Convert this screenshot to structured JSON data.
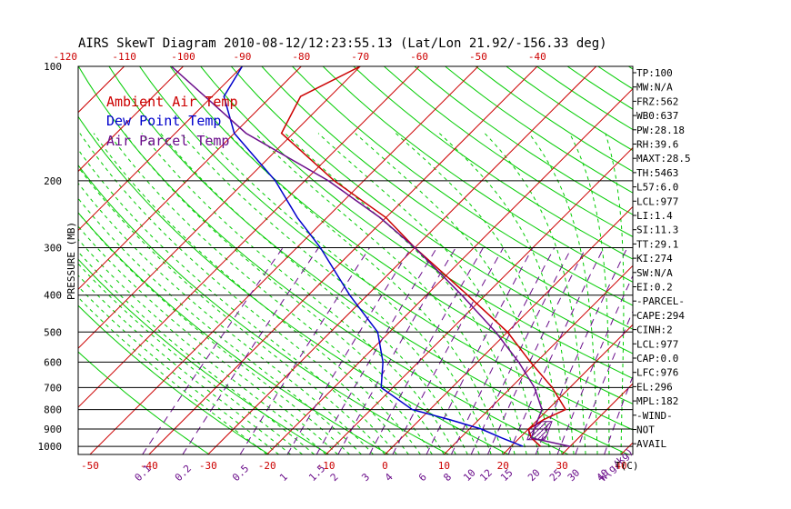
{
  "chart_data": {
    "type": "line",
    "title": "AIRS SkewT Diagram 2010-08-12/12:23:55.13 (Lat/Lon 21.92/-156.33 deg)",
    "ylabel": "PRESSURE (MB)",
    "xlabel": "T(C)",
    "mixing_ratio_unit": "W(g/kg)",
    "legend": [
      "Ambient Air Temp",
      "Dew Point Temp",
      "Air Parcel Temp"
    ],
    "legend_position": "top-left",
    "grid": true,
    "y_scale": "log",
    "ylim": [
      1050,
      100
    ],
    "xlim_bottom": [
      -52,
      42
    ],
    "y_ticks": [
      "100",
      "200",
      "300",
      "400",
      "500",
      "600",
      "700",
      "800",
      "900",
      "1000"
    ],
    "x_ticks_bottom": [
      "-50",
      "-40",
      "-30",
      "-20",
      "-10",
      "0",
      "10",
      "20",
      "30",
      "40"
    ],
    "x_ticks_top": [
      "-120",
      "-110",
      "-100",
      "-90",
      "-80",
      "-70",
      "-60",
      "-50",
      "-40"
    ],
    "mixing_ratio_labels": [
      "0.1",
      "0.2",
      "0.5",
      "1",
      "1.5",
      "2",
      "3",
      "4",
      "6",
      "8",
      "10",
      "12",
      "15",
      "20",
      "25",
      "30",
      "40"
    ],
    "series": [
      {
        "name": "Ambient Air Temp",
        "color": "#cc0000",
        "points": [
          [
            1000,
            25
          ],
          [
            950,
            22
          ],
          [
            900,
            20
          ],
          [
            850,
            21
          ],
          [
            800,
            23
          ],
          [
            700,
            17
          ],
          [
            600,
            9
          ],
          [
            500,
            0
          ],
          [
            400,
            -13
          ],
          [
            300,
            -30
          ],
          [
            250,
            -40
          ],
          [
            200,
            -55
          ],
          [
            150,
            -72
          ],
          [
            120,
            -75
          ],
          [
            100,
            -70
          ]
        ]
      },
      {
        "name": "Dew Point Temp",
        "color": "#0000cc",
        "points": [
          [
            1000,
            22
          ],
          [
            950,
            17
          ],
          [
            900,
            12
          ],
          [
            850,
            5
          ],
          [
            800,
            -3
          ],
          [
            700,
            -12
          ],
          [
            600,
            -16
          ],
          [
            500,
            -22
          ],
          [
            400,
            -33
          ],
          [
            300,
            -46
          ],
          [
            250,
            -55
          ],
          [
            200,
            -65
          ],
          [
            150,
            -80
          ],
          [
            120,
            -88
          ],
          [
            100,
            -90
          ]
        ]
      },
      {
        "name": "Air Parcel Temp",
        "color": "#6a0d8a",
        "points": [
          [
            1000,
            30
          ],
          [
            950,
            22
          ],
          [
            900,
            21
          ],
          [
            850,
            20
          ],
          [
            800,
            19
          ],
          [
            700,
            14
          ],
          [
            600,
            7
          ],
          [
            500,
            -2
          ],
          [
            400,
            -14
          ],
          [
            300,
            -30
          ],
          [
            250,
            -41
          ],
          [
            200,
            -56
          ],
          [
            150,
            -78
          ],
          [
            100,
            -102
          ]
        ]
      }
    ],
    "indices": [
      "TP:100",
      "MW:N/A",
      "FRZ:562",
      "WB0:637",
      "PW:28.18",
      "RH:39.6",
      "MAXT:28.5",
      "TH:5463",
      "L57:6.0",
      "LCL:977",
      "LI:1.4",
      "SI:11.3",
      "TT:29.1",
      "KI:274",
      "SW:N/A",
      "EI:0.2",
      "-PARCEL-",
      "CAPE:294",
      "CINH:2",
      "LCL:977",
      "CAP:0.0",
      "LFC:976",
      "EL:296",
      "MPL:182",
      "-WIND-",
      "NOT",
      "AVAIL"
    ],
    "colors": {
      "dry_adiabat": "#00cc00",
      "isotherm": "#cc0000",
      "moist_adiabat": "#00cc00",
      "mixing_ratio": "#6a0d8a",
      "isobar": "#000000"
    }
  }
}
